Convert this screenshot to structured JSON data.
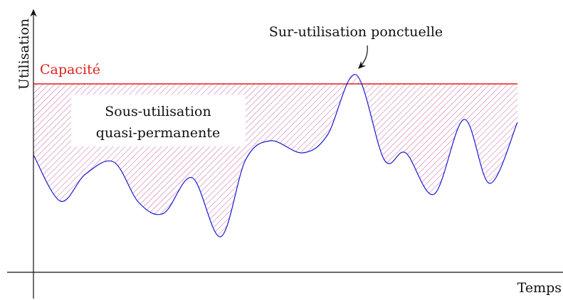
{
  "axes": {
    "y_label": "Utilisation",
    "x_label": "Temps"
  },
  "capacity_label": "Capacité",
  "annotations": {
    "under": [
      "Sous-utilisation",
      "quasi-permanente"
    ],
    "over": "Sur-utilisation ponctuelle"
  }
}
